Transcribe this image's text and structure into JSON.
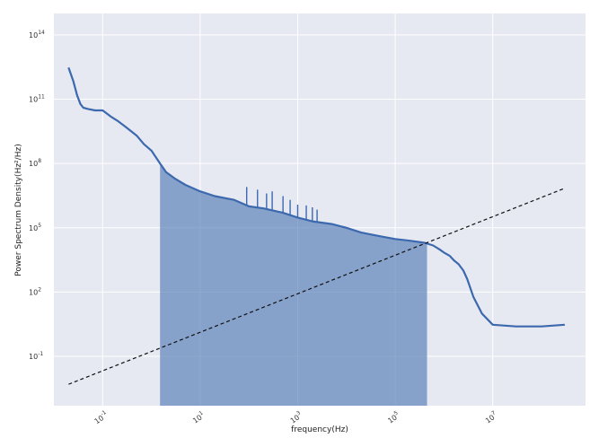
{
  "chart_data": {
    "type": "line",
    "xscale": "log",
    "yscale": "log",
    "xlabel": "frequency(Hz)",
    "ylabel": "Power Spectrum Density(Hz²/Hz)",
    "xlim": [
      0.01,
      800000000
    ],
    "ylim": [
      0.0005,
      1000000000000000
    ],
    "grid": true,
    "xticks": [
      {
        "value": 0.1,
        "base": "10",
        "exp": "-1"
      },
      {
        "value": 10,
        "base": "10",
        "exp": "1"
      },
      {
        "value": 1000,
        "base": "10",
        "exp": "3"
      },
      {
        "value": 100000,
        "base": "10",
        "exp": "5"
      },
      {
        "value": 10000000,
        "base": "10",
        "exp": "7"
      }
    ],
    "yticks": [
      {
        "value": 0.1,
        "base": "10",
        "exp": "-1"
      },
      {
        "value": 100,
        "base": "10",
        "exp": "2"
      },
      {
        "value": 100000,
        "base": "10",
        "exp": "5"
      },
      {
        "value": 100000000,
        "base": "10",
        "exp": "8"
      },
      {
        "value": 100000000000,
        "base": "10",
        "exp": "11"
      },
      {
        "value": 100000000000000,
        "base": "10",
        "exp": "14"
      }
    ],
    "psd_series": {
      "x": [
        0.02,
        0.025,
        0.03,
        0.035,
        0.04,
        0.05,
        0.07,
        0.1,
        0.15,
        0.2,
        0.3,
        0.5,
        0.7,
        1,
        1.5,
        2,
        3,
        5,
        10,
        20,
        50,
        100,
        200,
        500,
        1000,
        2000,
        5000,
        10000,
        20000,
        50000,
        100000,
        200000,
        400000,
        600000,
        800000,
        1000000,
        1300000,
        1600000,
        2000000,
        2500000,
        3000000,
        4000000,
        6000000,
        10000000,
        30000000,
        100000000,
        300000000
      ],
      "y": [
        3000000000000,
        700000000000,
        150000000000,
        60000000000,
        40000000000,
        35000000000,
        30000000000,
        30000000000,
        15000000000,
        10000000000,
        5000000000,
        2000000000,
        800000000,
        400000000,
        100000000,
        40000000,
        20000000,
        10000000,
        5000000,
        3000000,
        2000000,
        1000000,
        800000,
        500000,
        300000,
        200000,
        150000,
        100000,
        60000,
        40000,
        30000,
        25000,
        20000,
        15000,
        10000,
        7000,
        5000,
        3000,
        2000,
        1000,
        400,
        60,
        10,
        3,
        2.5,
        2.5,
        3
      ]
    },
    "integration_band": {
      "x_start": 1.5,
      "x_end": 450000
    },
    "reference_line": {
      "x": [
        0.02,
        300000000
      ],
      "y": [
        0.005,
        7000000
      ]
    },
    "peaks": [
      {
        "x": 90,
        "y": 8000000
      },
      {
        "x": 150,
        "y": 6000000
      },
      {
        "x": 230,
        "y": 4000000
      },
      {
        "x": 300,
        "y": 5000000
      },
      {
        "x": 500,
        "y": 3000000
      },
      {
        "x": 700,
        "y": 2000000
      },
      {
        "x": 1000,
        "y": 1200000
      },
      {
        "x": 1500,
        "y": 1100000
      },
      {
        "x": 2000,
        "y": 900000
      },
      {
        "x": 2500,
        "y": 700000
      }
    ],
    "colors": {
      "background": "#e7e9f2",
      "grid": "#ffffff",
      "series": "#3c69ae",
      "band": "#4a74b2",
      "reference": "#111111"
    }
  }
}
